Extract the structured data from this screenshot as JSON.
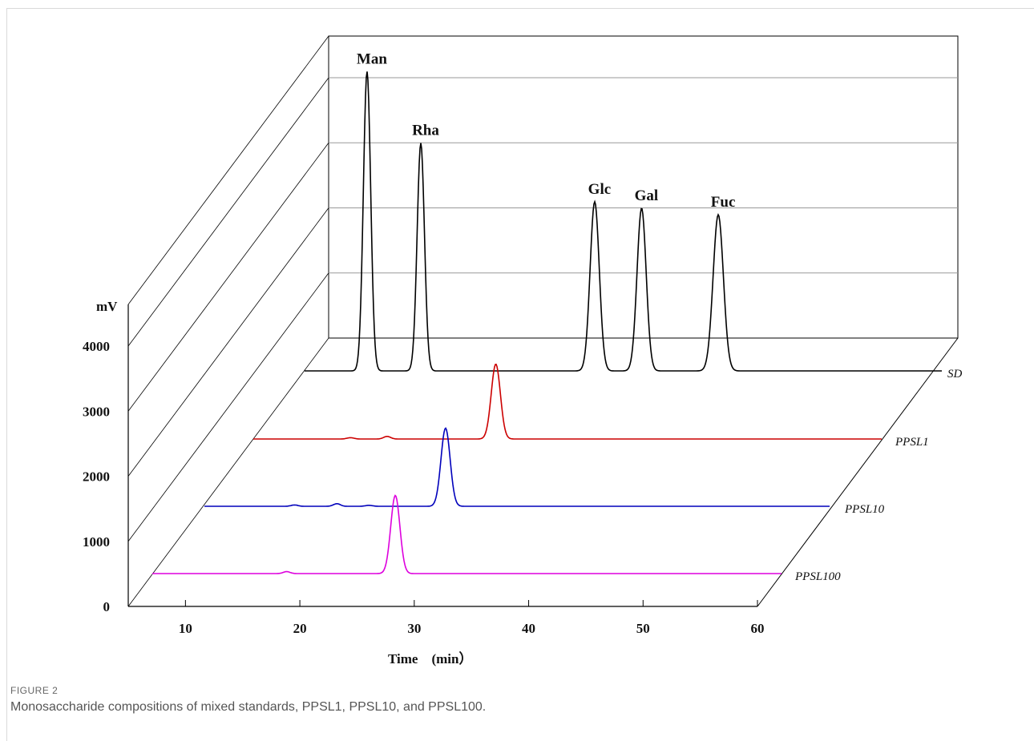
{
  "figure": {
    "label": "FIGURE 2",
    "caption": "Monosaccharide compositions of mixed standards, PPSL1, PPSL10, and PPSL100."
  },
  "chart_data": {
    "type": "line",
    "style": "3d-waterfall",
    "xlabel": "Time　(min）",
    "ylabel": "mV",
    "xlim": [
      5,
      60
    ],
    "ylim": [
      0,
      4000
    ],
    "x_ticks": [
      10,
      20,
      30,
      40,
      50,
      60
    ],
    "y_ticks": [
      0,
      1000,
      2000,
      3000,
      4000
    ],
    "series": [
      {
        "name": "SD",
        "color": "#000000",
        "peaks": [
          {
            "label": "Man",
            "time": 10.5,
            "height": 4600,
            "width": 0.32
          },
          {
            "label": "Rha",
            "time": 15.2,
            "height": 3500,
            "width": 0.32
          },
          {
            "label": "Glc",
            "time": 30.4,
            "height": 2600,
            "width": 0.4
          },
          {
            "label": "Gal",
            "time": 34.5,
            "height": 2500,
            "width": 0.4
          },
          {
            "label": "Fuc",
            "time": 41.2,
            "height": 2400,
            "width": 0.45
          }
        ]
      },
      {
        "name": "PPSL1",
        "color": "#cc0000",
        "peaks": [
          {
            "label": "",
            "time": 26.2,
            "height": 1150,
            "width": 0.4
          },
          {
            "label": "",
            "time": 16.7,
            "height": 40,
            "width": 0.3
          },
          {
            "label": "",
            "time": 13.5,
            "height": 20,
            "width": 0.3
          }
        ]
      },
      {
        "name": "PPSL10",
        "color": "#0000bb",
        "peaks": [
          {
            "label": "",
            "time": 26.2,
            "height": 1200,
            "width": 0.4
          },
          {
            "label": "",
            "time": 16.7,
            "height": 40,
            "width": 0.3
          },
          {
            "label": "",
            "time": 13.0,
            "height": 20,
            "width": 0.3
          },
          {
            "label": "",
            "time": 19.5,
            "height": 15,
            "width": 0.3
          }
        ]
      },
      {
        "name": "PPSL100",
        "color": "#dd00dd",
        "peaks": [
          {
            "label": "",
            "time": 26.2,
            "height": 1200,
            "width": 0.4
          },
          {
            "label": "",
            "time": 16.7,
            "height": 30,
            "width": 0.3
          }
        ]
      }
    ],
    "grid": true
  }
}
